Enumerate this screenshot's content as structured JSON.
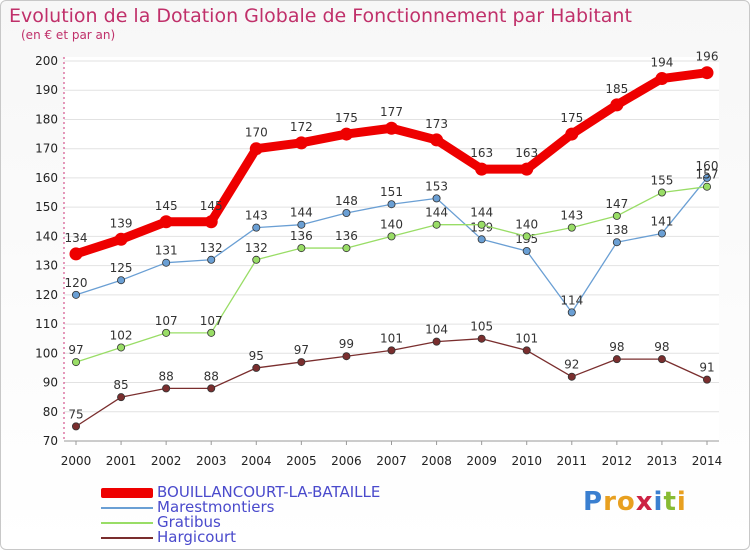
{
  "chart_data": {
    "type": "line",
    "title": "Evolution de la Dotation Globale de Fonctionnement par Habitant",
    "subtitle": "(en € et par an)",
    "xlabel": "",
    "ylabel": "",
    "ylim": [
      70,
      200
    ],
    "yticks": [
      70,
      80,
      90,
      100,
      110,
      120,
      130,
      140,
      150,
      160,
      170,
      180,
      190,
      200
    ],
    "grid": "horizontal",
    "legend_position": "bottom-left",
    "categories": [
      "2000",
      "2001",
      "2002",
      "2003",
      "2004",
      "2005",
      "2006",
      "2007",
      "2008",
      "2009",
      "2010",
      "2011",
      "2012",
      "2013",
      "2014"
    ],
    "series": [
      {
        "name": "BOUILLANCOURT-LA-BATAILLE",
        "color": "#ee0000",
        "emphasis": true,
        "values": [
          134,
          139,
          145,
          145,
          170,
          172,
          175,
          177,
          173,
          163,
          163,
          175,
          185,
          194,
          196
        ]
      },
      {
        "name": "Marestmontiers",
        "color": "#6a9fd4",
        "emphasis": false,
        "values": [
          120,
          125,
          131,
          132,
          143,
          144,
          148,
          151,
          153,
          139,
          135,
          114,
          138,
          141,
          160
        ]
      },
      {
        "name": "Gratibus",
        "color": "#99dd66",
        "emphasis": false,
        "values": [
          97,
          102,
          107,
          107,
          132,
          136,
          136,
          140,
          144,
          144,
          140,
          143,
          147,
          155,
          157
        ]
      },
      {
        "name": "Hargicourt",
        "color": "#7a2e2e",
        "emphasis": false,
        "values": [
          75,
          85,
          88,
          88,
          95,
          97,
          99,
          101,
          104,
          105,
          101,
          92,
          98,
          98,
          91
        ]
      }
    ]
  },
  "logo": {
    "text": "Proxiti",
    "colors": [
      "#3a7fd0",
      "#e8a020",
      "#e8a020",
      "#cc2244",
      "#3a7fd0",
      "#88bb33",
      "#e8a020"
    ]
  }
}
